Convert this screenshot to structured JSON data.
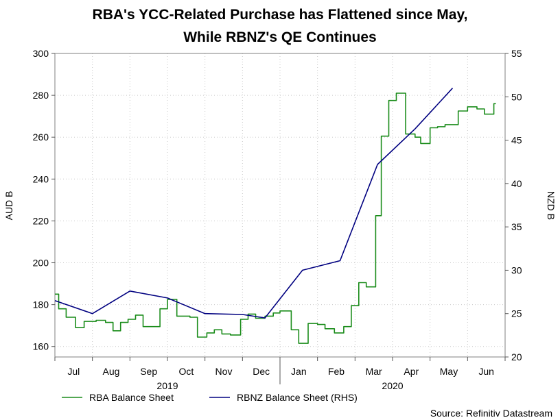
{
  "chart_data": {
    "type": "line",
    "title": [
      "RBA's YCC-Related Purchase has Flattened since May,",
      "While RBNZ's QE Continues"
    ],
    "ylabel_left": "AUD B",
    "ylabel_right": "NZD B",
    "ylim_left": [
      155,
      300
    ],
    "ylim_right": [
      20,
      55
    ],
    "yticks_left": [
      160,
      180,
      200,
      220,
      240,
      260,
      280,
      300
    ],
    "yticks_right": [
      20,
      25,
      30,
      35,
      40,
      45,
      50,
      55
    ],
    "xlim_months": [
      0,
      12
    ],
    "month_labels": [
      {
        "label": "Jul",
        "pos": 0.5
      },
      {
        "label": "Aug",
        "pos": 1.5
      },
      {
        "label": "Sep",
        "pos": 2.5
      },
      {
        "label": "Oct",
        "pos": 3.5
      },
      {
        "label": "Nov",
        "pos": 4.5
      },
      {
        "label": "Dec",
        "pos": 5.5
      },
      {
        "label": "Jan",
        "pos": 6.5
      },
      {
        "label": "Feb",
        "pos": 7.5
      },
      {
        "label": "Mar",
        "pos": 8.5
      },
      {
        "label": "Apr",
        "pos": 9.5
      },
      {
        "label": "May",
        "pos": 10.5
      },
      {
        "label": "Jun",
        "pos": 11.5
      }
    ],
    "year_labels": [
      {
        "label": "2019",
        "pos": 3.0
      },
      {
        "label": "2020",
        "pos": 9.0
      }
    ],
    "grid": true,
    "series": [
      {
        "name": "RBA Balance Sheet",
        "axis": "left",
        "color": "#1a8c1a",
        "step": true,
        "points": [
          [
            0.0,
            185
          ],
          [
            0.1,
            178
          ],
          [
            0.3,
            174
          ],
          [
            0.55,
            169
          ],
          [
            0.78,
            172
          ],
          [
            1.1,
            172.5
          ],
          [
            1.35,
            171.5
          ],
          [
            1.55,
            167.5
          ],
          [
            1.75,
            171.5
          ],
          [
            1.95,
            173
          ],
          [
            2.15,
            175
          ],
          [
            2.35,
            169.5
          ],
          [
            2.8,
            178
          ],
          [
            3.0,
            182.5
          ],
          [
            3.25,
            174.5
          ],
          [
            3.6,
            174
          ],
          [
            3.8,
            164.5
          ],
          [
            4.05,
            166.5
          ],
          [
            4.25,
            168
          ],
          [
            4.45,
            166
          ],
          [
            4.68,
            165.5
          ],
          [
            4.95,
            173
          ],
          [
            5.15,
            175.5
          ],
          [
            5.35,
            173.5
          ],
          [
            5.6,
            174.5
          ],
          [
            5.82,
            176
          ],
          [
            6.0,
            177
          ],
          [
            6.3,
            168
          ],
          [
            6.5,
            161.5
          ],
          [
            6.75,
            171
          ],
          [
            7.0,
            170.5
          ],
          [
            7.2,
            168.5
          ],
          [
            7.45,
            166.5
          ],
          [
            7.7,
            169.5
          ],
          [
            7.9,
            179.5
          ],
          [
            8.1,
            190.5
          ],
          [
            8.3,
            188.5
          ],
          [
            8.55,
            222.5
          ],
          [
            8.7,
            260.5
          ],
          [
            8.9,
            277.5
          ],
          [
            9.1,
            281
          ],
          [
            9.35,
            261.5
          ],
          [
            9.6,
            260
          ],
          [
            9.75,
            257
          ],
          [
            10.0,
            264.5
          ],
          [
            10.2,
            265
          ],
          [
            10.4,
            266
          ],
          [
            10.6,
            266
          ],
          [
            10.75,
            272.5
          ],
          [
            11.0,
            274.5
          ],
          [
            11.25,
            273.5
          ],
          [
            11.45,
            271
          ],
          [
            11.7,
            276
          ]
        ]
      },
      {
        "name": "RBNZ Balance Sheet (RHS)",
        "axis": "right",
        "color": "#000080",
        "step": false,
        "points": [
          [
            0.0,
            26.5
          ],
          [
            1.0,
            25.0
          ],
          [
            2.0,
            27.6
          ],
          [
            3.0,
            26.8
          ],
          [
            4.0,
            25.0
          ],
          [
            5.0,
            24.9
          ],
          [
            5.6,
            24.5
          ],
          [
            6.6,
            30.0
          ],
          [
            7.6,
            31.1
          ],
          [
            8.6,
            42.2
          ],
          [
            9.6,
            46.3
          ],
          [
            10.6,
            51.0
          ]
        ]
      }
    ],
    "legend_placement": "bottom-left",
    "source": "Source: Refinitiv Datastream"
  }
}
